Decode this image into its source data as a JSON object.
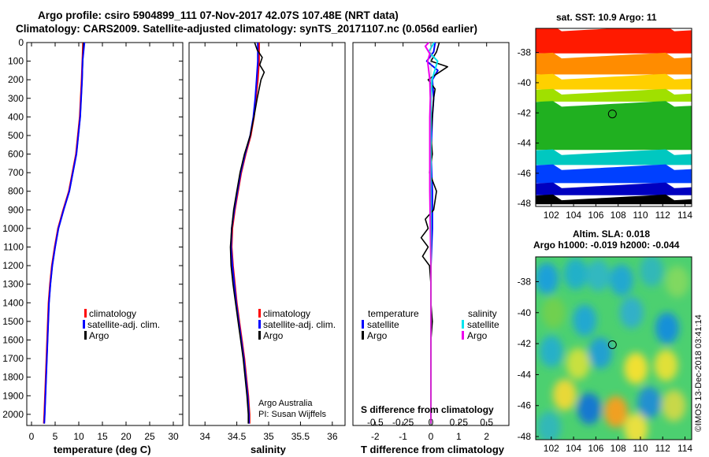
{
  "header": {
    "line1": "Argo profile: csiro 5904899_111 07-Nov-2017 42.07S 107.48E (NRT data)",
    "line2": "Climatology: CARS2009. Satellite-adjusted climatology: synTS_20171107.nc (0.056d earlier)"
  },
  "colors": {
    "climatology": "#ff0000",
    "satellite": "#0000ff",
    "argo": "#000000",
    "sat_salinity": "#00e5ee",
    "argo_salinity_diff": "#ee00ee"
  },
  "depth_axis": {
    "ticks": [
      0,
      100,
      200,
      300,
      400,
      500,
      600,
      700,
      800,
      900,
      1000,
      1100,
      1200,
      1300,
      1400,
      1500,
      1600,
      1700,
      1800,
      1900,
      2000
    ],
    "range": [
      0,
      2060
    ]
  },
  "chart_data": [
    {
      "type": "line",
      "xlabel": "temperature (deg C)",
      "xlim": [
        -1,
        32
      ],
      "xticks": [
        0,
        5,
        10,
        15,
        20,
        25,
        30
      ],
      "ylim": [
        2060,
        0
      ],
      "legend": [
        "climatology",
        "satellite-adj. clim.",
        "Argo"
      ],
      "series": [
        {
          "name": "climatology",
          "y": [
            0,
            200,
            400,
            600,
            800,
            900,
            1000,
            1100,
            1200,
            1300,
            1400,
            1600,
            1800,
            2000,
            2050
          ],
          "x": [
            10.9,
            10.6,
            10.2,
            9.4,
            7.9,
            6.7,
            5.6,
            4.9,
            4.3,
            3.9,
            3.6,
            3.3,
            3.0,
            2.7,
            2.6
          ]
        },
        {
          "name": "satellite-adj. clim.",
          "y": [
            0,
            200,
            400,
            600,
            800,
            900,
            1000,
            1100,
            1200,
            1300,
            1400,
            1600,
            1800,
            2000,
            2050
          ],
          "x": [
            11.0,
            10.7,
            10.3,
            9.5,
            8.0,
            6.8,
            5.7,
            5.0,
            4.4,
            4.0,
            3.7,
            3.4,
            3.1,
            2.8,
            2.7
          ]
        },
        {
          "name": "Argo",
          "y": [
            0,
            100,
            200,
            400,
            600,
            800,
            900,
            1000,
            1100,
            1200,
            1300,
            1400,
            1600,
            1800,
            2000,
            2050
          ],
          "x": [
            11.2,
            10.8,
            10.7,
            10.3,
            9.5,
            8.0,
            6.8,
            5.7,
            5.0,
            4.4,
            4.0,
            3.7,
            3.4,
            3.1,
            2.8,
            2.7
          ]
        }
      ]
    },
    {
      "type": "line",
      "xlabel": "salinity",
      "xlim": [
        33.75,
        36.2
      ],
      "xticks": [
        34,
        34.5,
        35,
        35.5,
        36
      ],
      "ylim": [
        2060,
        0
      ],
      "legend": [
        "climatology",
        "satellite-adj. clim.",
        "Argo"
      ],
      "annotation": [
        "Argo Australia",
        "PI: Susan Wijffels"
      ],
      "series": [
        {
          "name": "climatology",
          "y": [
            0,
            100,
            200,
            300,
            400,
            500,
            600,
            700,
            800,
            900,
            1000,
            1100,
            1200,
            1300,
            1400,
            1500,
            1600,
            1700,
            1800,
            1900,
            2000,
            2050
          ],
          "x": [
            34.85,
            34.85,
            34.83,
            34.8,
            34.77,
            34.72,
            34.64,
            34.57,
            34.52,
            34.47,
            34.43,
            34.42,
            34.44,
            34.47,
            34.5,
            34.54,
            34.58,
            34.62,
            34.65,
            34.68,
            34.7,
            34.7
          ]
        },
        {
          "name": "satellite-adj. clim.",
          "y": [
            0,
            100,
            200,
            300,
            400,
            500,
            600,
            700,
            800,
            900,
            1000,
            1100,
            1200,
            1300,
            1400,
            1500,
            1600,
            1700,
            1800,
            1900,
            2000,
            2050
          ],
          "x": [
            34.83,
            34.83,
            34.81,
            34.79,
            34.76,
            34.71,
            34.63,
            34.56,
            34.51,
            34.46,
            34.42,
            34.41,
            34.43,
            34.46,
            34.49,
            34.53,
            34.57,
            34.61,
            34.64,
            34.67,
            34.69,
            34.69
          ]
        },
        {
          "name": "Argo",
          "y": [
            0,
            40,
            80,
            120,
            160,
            200,
            300,
            400,
            500,
            600,
            700,
            800,
            900,
            1000,
            1100,
            1200,
            1300,
            1400,
            1500,
            1600,
            1700,
            1800,
            1900,
            2000,
            2050
          ],
          "x": [
            34.78,
            34.82,
            34.9,
            34.86,
            34.93,
            34.88,
            34.82,
            34.77,
            34.71,
            34.62,
            34.55,
            34.5,
            34.45,
            34.42,
            34.4,
            34.41,
            34.44,
            34.48,
            34.52,
            34.56,
            34.6,
            34.63,
            34.66,
            34.68,
            34.68
          ]
        }
      ]
    },
    {
      "type": "line",
      "xlabel": "T difference from climatology",
      "xlabel2": "S difference from climatology",
      "xlim": [
        -2.8,
        2.8
      ],
      "xticks": [
        -2,
        -1,
        0,
        1,
        2
      ],
      "xticks2": [
        "-0.5",
        "-0.25",
        "0",
        "0.25",
        "0.5"
      ],
      "ylim": [
        2060,
        0
      ],
      "legend": {
        "temperature": [
          "satellite",
          "Argo"
        ],
        "salinity": [
          "satellite",
          "Argo"
        ]
      },
      "series": [
        {
          "name": "temperature satellite",
          "y": [
            0,
            50,
            100,
            150,
            200,
            300,
            400,
            600,
            800,
            1000,
            1200,
            1400,
            1600,
            1800,
            2000,
            2050
          ],
          "x": [
            0.15,
            0.1,
            -0.15,
            0.25,
            0.05,
            0.1,
            0.05,
            0.0,
            0.05,
            0.05,
            0.0,
            0.0,
            0.0,
            0.0,
            0.0,
            0.0
          ]
        },
        {
          "name": "temperature Argo",
          "y": [
            0,
            50,
            100,
            130,
            170,
            200,
            250,
            300,
            400,
            500,
            600,
            700,
            800,
            900,
            950,
            1000,
            1050,
            1100,
            1150,
            1200,
            1300,
            1400,
            1500,
            1600,
            1800,
            2000,
            2050
          ],
          "x": [
            0.3,
            0.2,
            0.0,
            0.6,
            0.2,
            -0.1,
            0.15,
            0.1,
            0.05,
            0.0,
            0.05,
            -0.05,
            0.2,
            0.1,
            -0.2,
            -0.1,
            -0.35,
            -0.1,
            -0.3,
            -0.05,
            0.0,
            0.0,
            0.05,
            0.0,
            0.0,
            0.0,
            0.0
          ]
        },
        {
          "name": "salinity satellite",
          "y": [
            0,
            50,
            100,
            200,
            300,
            400,
            600,
            800,
            1000,
            1200,
            1400,
            1600,
            1800,
            2000,
            2050
          ],
          "x": [
            0.03,
            -0.02,
            0.06,
            0.01,
            0.0,
            0.0,
            0.0,
            0.0,
            0.0,
            0.0,
            0.0,
            0.0,
            0.0,
            0.0,
            0.0
          ]
        },
        {
          "name": "salinity Argo",
          "y": [
            0,
            20,
            60,
            100,
            150,
            200,
            300,
            400,
            600,
            800,
            1000,
            1200,
            1400,
            1600,
            1800,
            2000,
            2050
          ],
          "x": [
            -0.02,
            -0.05,
            -0.01,
            -0.03,
            -0.02,
            -0.01,
            -0.005,
            -0.01,
            -0.01,
            -0.01,
            -0.005,
            0.0,
            0.0,
            0.0,
            0.0,
            0.0,
            0.0
          ]
        }
      ]
    },
    {
      "type": "heatmap",
      "title": "sat. SST: 10.9  Argo: 11",
      "xticks": [
        102,
        104,
        106,
        108,
        110,
        112,
        114
      ],
      "yticks": [
        -38,
        -40,
        -42,
        -44,
        -46,
        -48
      ],
      "xlim": [
        100.6,
        114.6
      ],
      "ylim": [
        -48.2,
        -36.4
      ],
      "marker": {
        "lon": 107.48,
        "lat": -42.07
      },
      "color_bands": [
        {
          "lat_to": -38.2,
          "color": "#ff1a00"
        },
        {
          "lat_to": -39.6,
          "color": "#ff8c00"
        },
        {
          "lat_to": -40.6,
          "color": "#ffd000"
        },
        {
          "lat_to": -41.4,
          "color": "#a0e000"
        },
        {
          "lat_to": -44.6,
          "color": "#20b020"
        },
        {
          "lat_to": -45.6,
          "color": "#00c8c0"
        },
        {
          "lat_to": -46.8,
          "color": "#0040ff"
        },
        {
          "lat_to": -47.6,
          "color": "#0000c0"
        },
        {
          "lat_to": -48.2,
          "color": "#000000"
        }
      ]
    },
    {
      "type": "heatmap",
      "title": "Altim. SLA: 0.018",
      "subtitle": "Argo h1000: -0.019  h2000: -0.044",
      "xticks": [
        102,
        104,
        106,
        108,
        110,
        112,
        114
      ],
      "yticks": [
        -38,
        -40,
        -42,
        -44,
        -46,
        -48
      ],
      "xlim": [
        100.6,
        114.6
      ],
      "ylim": [
        -48.2,
        -36.4
      ],
      "marker": {
        "lon": 107.48,
        "lat": -42.07
      },
      "background": "#4cd070",
      "blobs": [
        {
          "lon": 101.6,
          "lat": -37.8,
          "color": "#1aa0d8"
        },
        {
          "lon": 104.2,
          "lat": -37.5,
          "color": "#20b0c8"
        },
        {
          "lon": 106.2,
          "lat": -37.6,
          "color": "#30b8c0"
        },
        {
          "lon": 108.3,
          "lat": -37.9,
          "color": "#20a8d0"
        },
        {
          "lon": 111.0,
          "lat": -37.3,
          "color": "#30b8b8"
        },
        {
          "lon": 113.3,
          "lat": -38.0,
          "color": "#80d860"
        },
        {
          "lon": 102.2,
          "lat": -40.0,
          "color": "#70d050"
        },
        {
          "lon": 105.0,
          "lat": -40.5,
          "color": "#20a8d0"
        },
        {
          "lon": 109.2,
          "lat": -40.0,
          "color": "#30b0c8"
        },
        {
          "lon": 112.4,
          "lat": -41.0,
          "color": "#1890d8"
        },
        {
          "lon": 102.0,
          "lat": -42.5,
          "color": "#28b0c8"
        },
        {
          "lon": 104.4,
          "lat": -43.3,
          "color": "#c8e040"
        },
        {
          "lon": 106.4,
          "lat": -42.6,
          "color": "#20a0d0"
        },
        {
          "lon": 109.6,
          "lat": -43.6,
          "color": "#f0e030"
        },
        {
          "lon": 112.3,
          "lat": -43.4,
          "color": "#e0e038"
        },
        {
          "lon": 103.2,
          "lat": -45.3,
          "color": "#e8d838"
        },
        {
          "lon": 105.4,
          "lat": -46.2,
          "color": "#1878d0"
        },
        {
          "lon": 107.8,
          "lat": -46.4,
          "color": "#f0a020"
        },
        {
          "lon": 110.8,
          "lat": -45.8,
          "color": "#2090d0"
        },
        {
          "lon": 113.0,
          "lat": -46.0,
          "color": "#c8d848"
        },
        {
          "lon": 101.8,
          "lat": -47.4,
          "color": "#30b8b8"
        },
        {
          "lon": 109.6,
          "lat": -47.5,
          "color": "#e8e040"
        }
      ]
    }
  ],
  "footer": {
    "stamp": "©IMOS 13-Dec-2018 03:41:14"
  }
}
